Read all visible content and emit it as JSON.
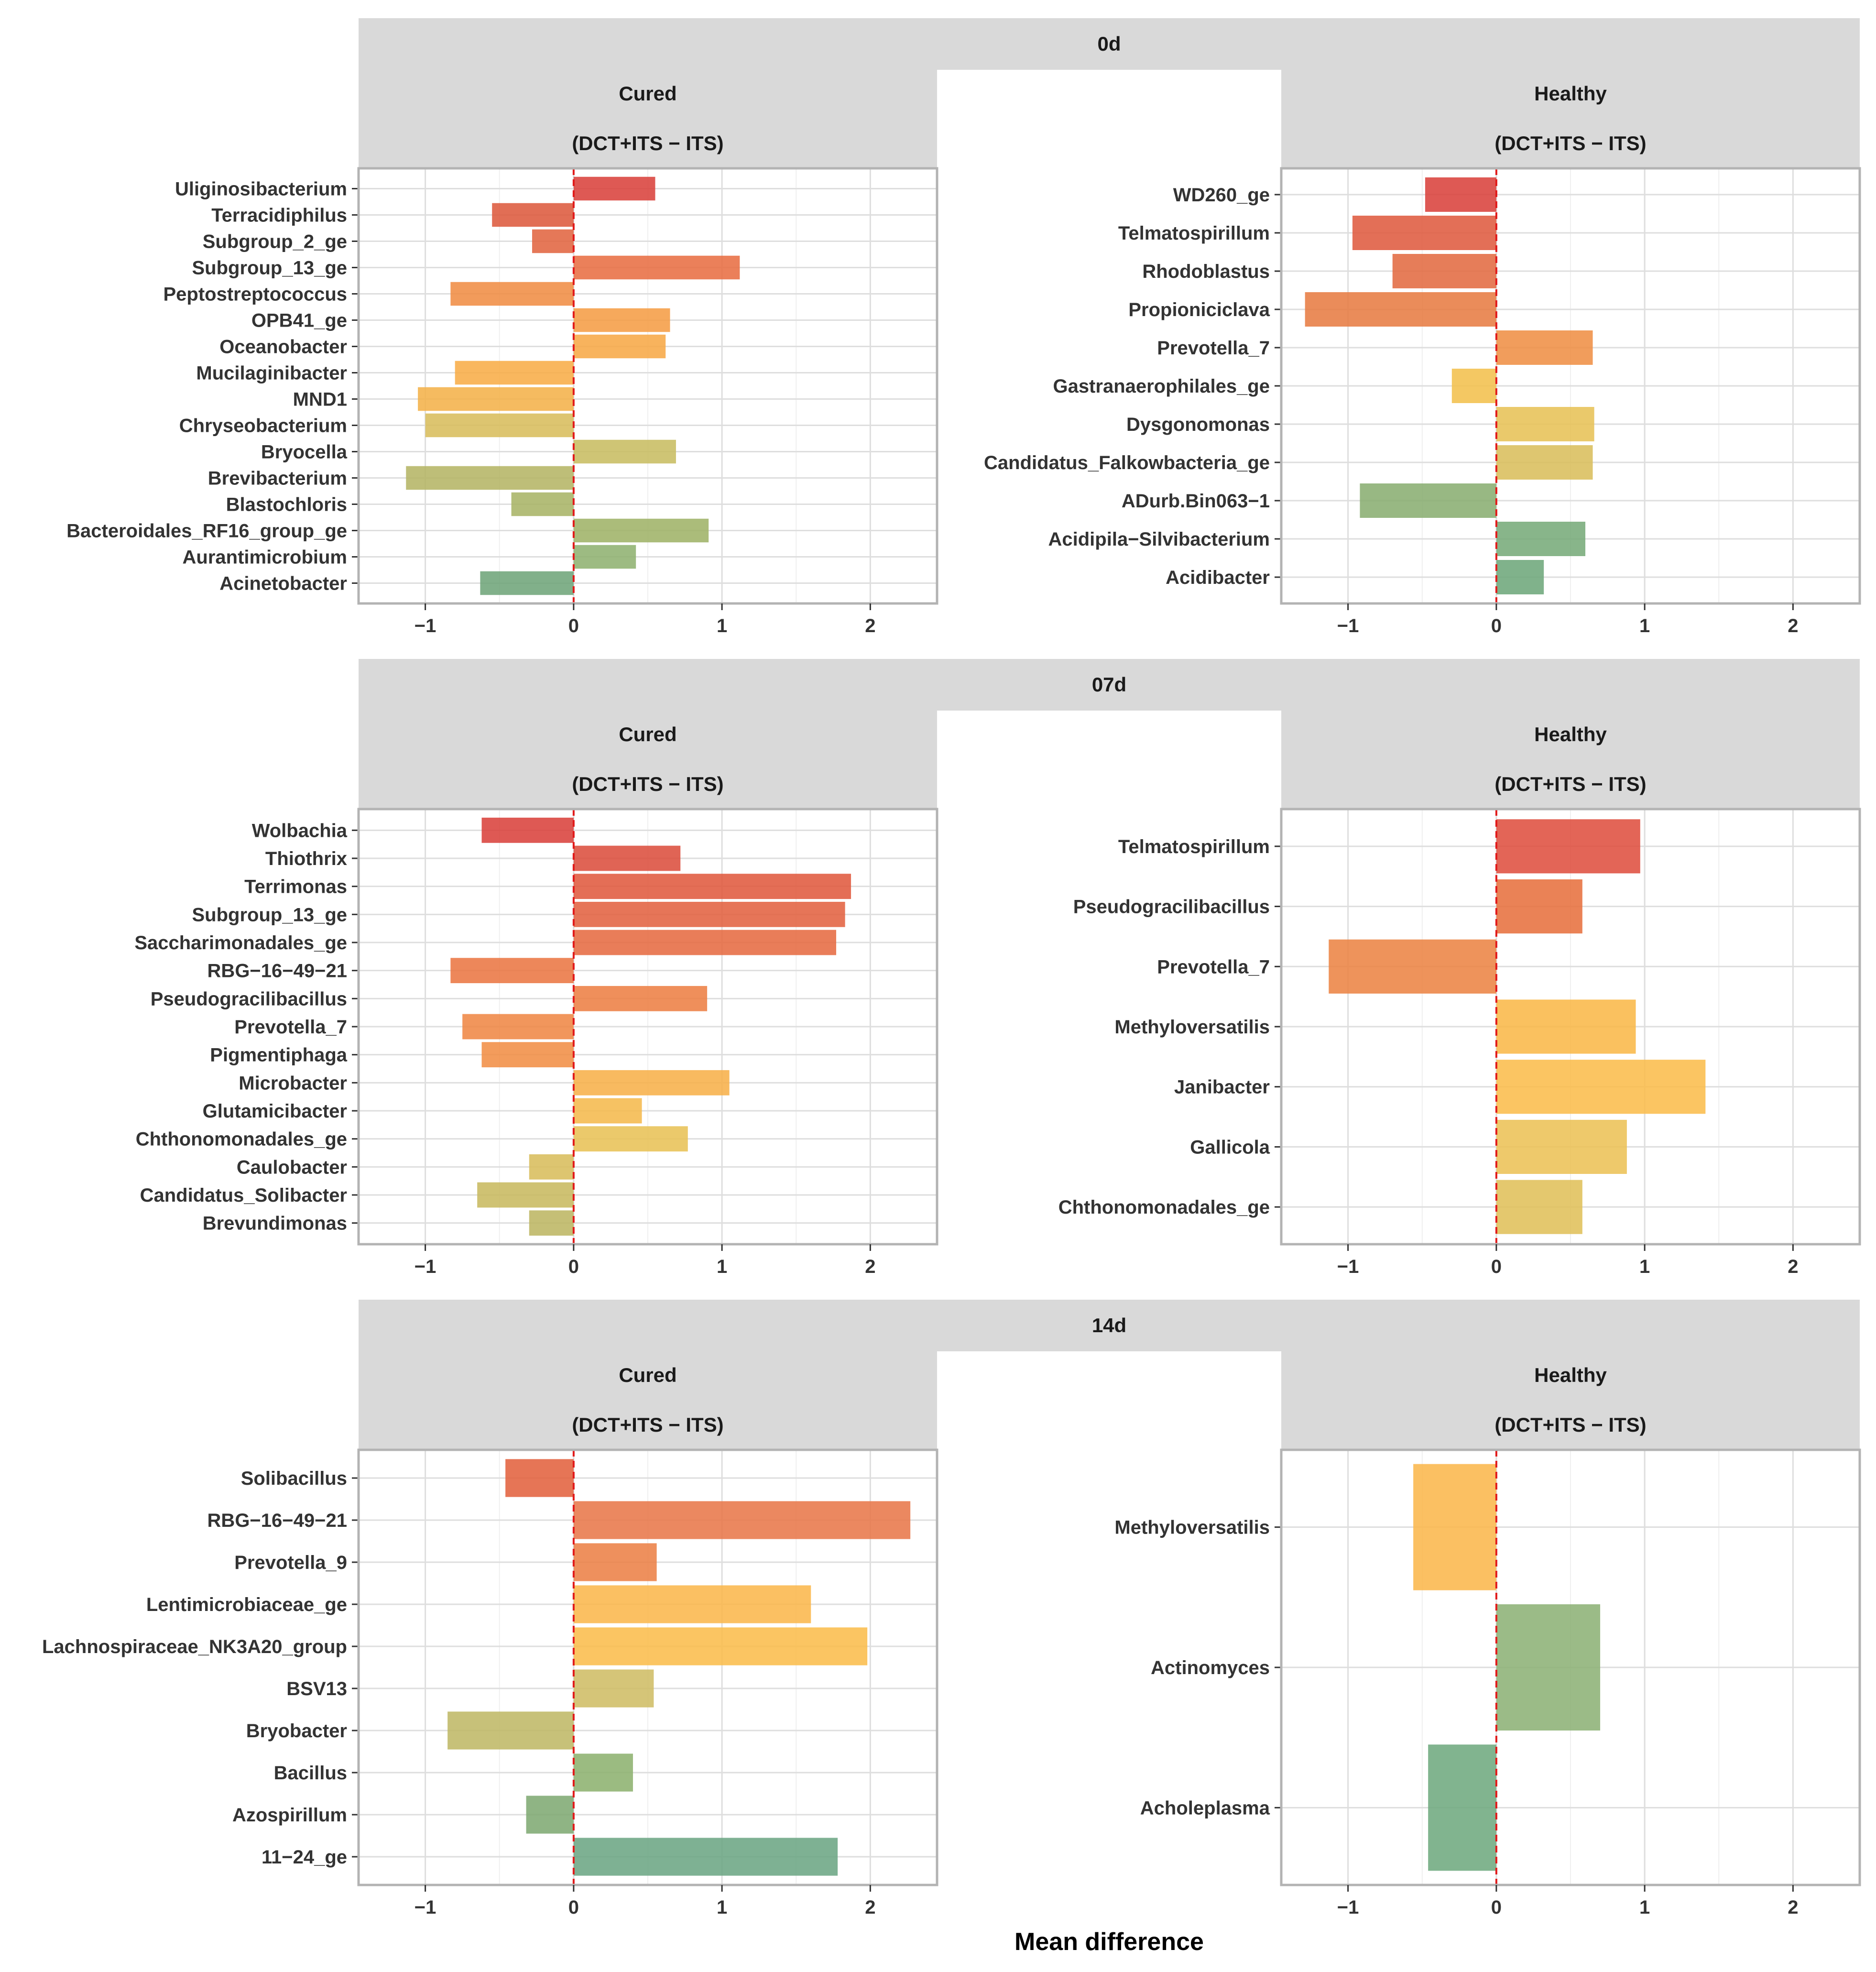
{
  "chart_data": {
    "type": "bar",
    "orientation": "horizontal",
    "xlabel": "Mean difference",
    "xlim": [
      -1.45,
      2.45
    ],
    "xticks": [
      -1,
      0,
      1,
      2
    ],
    "xtick_labels": [
      "−1",
      "0",
      "1",
      "2"
    ],
    "grid": true,
    "reference_line": {
      "x": 0,
      "style": "dashed",
      "color": "#e11a1a"
    },
    "comparison_label": "(DCT+ITS − ITS)",
    "rows": [
      {
        "time": "0d",
        "panels": [
          {
            "group": "Cured",
            "bars": [
              {
                "label": "Uliginosibacterium",
                "value": 0.55,
                "color": "#d9423c"
              },
              {
                "label": "Terracidiphilus",
                "value": -0.55,
                "color": "#dd5a3e"
              },
              {
                "label": "Subgroup_2_ge",
                "value": -0.28,
                "color": "#e16541"
              },
              {
                "label": "Subgroup_13_ge",
                "value": 1.12,
                "color": "#e86e43"
              },
              {
                "label": "Peptostreptococcus",
                "value": -0.83,
                "color": "#f08d44"
              },
              {
                "label": "OPB41_ge",
                "value": 0.65,
                "color": "#f59d45"
              },
              {
                "label": "Oceanobacter",
                "value": 0.62,
                "color": "#f7a847"
              },
              {
                "label": "Mucilaginibacter",
                "value": -0.8,
                "color": "#f8ad48"
              },
              {
                "label": "MND1",
                "value": -1.05,
                "color": "#f4b24a"
              },
              {
                "label": "Chryseobacterium",
                "value": -1.0,
                "color": "#d8bd5c"
              },
              {
                "label": "Bryocella",
                "value": 0.69,
                "color": "#c8bd62"
              },
              {
                "label": "Brevibacterium",
                "value": -1.13,
                "color": "#b5b565"
              },
              {
                "label": "Blastochloris",
                "value": -0.42,
                "color": "#a9b466"
              },
              {
                "label": "Bacteroidales_RF16_group_ge",
                "value": 0.91,
                "color": "#9fb368"
              },
              {
                "label": "Aurantimicrobium",
                "value": 0.42,
                "color": "#8fb271"
              },
              {
                "label": "Acinetobacter",
                "value": -0.63,
                "color": "#6fa57a"
              }
            ]
          },
          {
            "group": "Healthy",
            "bars": [
              {
                "label": "WD260_ge",
                "value": -0.48,
                "color": "#d9423c"
              },
              {
                "label": "Telmatospirillum",
                "value": -0.97,
                "color": "#df5b40"
              },
              {
                "label": "Rhodoblastus",
                "value": -0.7,
                "color": "#e36b42"
              },
              {
                "label": "Propioniciclava",
                "value": -1.29,
                "color": "#e77c43"
              },
              {
                "label": "Prevotella_7",
                "value": 0.65,
                "color": "#ef9045"
              },
              {
                "label": "Gastranaerophilales_ge",
                "value": -0.3,
                "color": "#f2c04d"
              },
              {
                "label": "Dysgonomonas",
                "value": 0.66,
                "color": "#e7c256"
              },
              {
                "label": "Candidatus_Falkowbacteria_ge",
                "value": 0.65,
                "color": "#d9be5c"
              },
              {
                "label": "ADurb.Bin063−1",
                "value": -0.92,
                "color": "#8aae72"
              },
              {
                "label": "Acidipila−Silvibacterium",
                "value": 0.6,
                "color": "#78ab7a"
              },
              {
                "label": "Acidibacter",
                "value": 0.32,
                "color": "#6ea77b"
              }
            ]
          }
        ]
      },
      {
        "time": "07d",
        "panels": [
          {
            "group": "Cured",
            "bars": [
              {
                "label": "Wolbachia",
                "value": -0.62,
                "color": "#d9423c"
              },
              {
                "label": "Thiothrix",
                "value": 0.72,
                "color": "#dc4f3e"
              },
              {
                "label": "Terrimonas",
                "value": 1.87,
                "color": "#e05a3f"
              },
              {
                "label": "Subgroup_13_ge",
                "value": 1.83,
                "color": "#e36241"
              },
              {
                "label": "Saccharimonadales_ge",
                "value": 1.77,
                "color": "#e66b42"
              },
              {
                "label": "RBG−16−49−21",
                "value": -0.83,
                "color": "#ea7643"
              },
              {
                "label": "Pseudogracilibacillus",
                "value": 0.9,
                "color": "#ed7f44"
              },
              {
                "label": "Prevotella_7",
                "value": -0.75,
                "color": "#ef8845"
              },
              {
                "label": "Pigmentiphaga",
                "value": -0.62,
                "color": "#f18e46"
              },
              {
                "label": "Microbacter",
                "value": 1.05,
                "color": "#f7b04a"
              },
              {
                "label": "Glutamicibacter",
                "value": 0.46,
                "color": "#f5b94d"
              },
              {
                "label": "Chthonomonadales_ge",
                "value": 0.77,
                "color": "#e8c256"
              },
              {
                "label": "Caulobacter",
                "value": -0.3,
                "color": "#d8bd5c"
              },
              {
                "label": "Candidatus_Solibacter",
                "value": -0.65,
                "color": "#c8ba60"
              },
              {
                "label": "Brevundimonas",
                "value": -0.3,
                "color": "#bdb663"
              }
            ]
          },
          {
            "group": "Healthy",
            "bars": [
              {
                "label": "Telmatospirillum",
                "value": 0.97,
                "color": "#df5040"
              },
              {
                "label": "Pseudogracilibacillus",
                "value": 0.58,
                "color": "#e7713f"
              },
              {
                "label": "Prevotella_7",
                "value": -1.13,
                "color": "#ec8444"
              },
              {
                "label": "Methyloversatilis",
                "value": 0.94,
                "color": "#f9b849"
              },
              {
                "label": "Janibacter",
                "value": 1.41,
                "color": "#fbbd4c"
              },
              {
                "label": "Gallicola",
                "value": 0.88,
                "color": "#ecc256"
              },
              {
                "label": "Chthonomonadales_ge",
                "value": 0.58,
                "color": "#e0c05a"
              }
            ]
          }
        ]
      },
      {
        "time": "14d",
        "panels": [
          {
            "group": "Cured",
            "bars": [
              {
                "label": "Solibacillus",
                "value": -0.46,
                "color": "#e3623f"
              },
              {
                "label": "RBG−16−49−21",
                "value": 2.27,
                "color": "#e8774a"
              },
              {
                "label": "Prevotella_9",
                "value": 0.56,
                "color": "#ec8147"
              },
              {
                "label": "Lentimicrobiaceae_ge",
                "value": 1.6,
                "color": "#fab74c"
              },
              {
                "label": "Lachnospiraceae_NK3A20_group",
                "value": 1.98,
                "color": "#fbbd4c"
              },
              {
                "label": "BSV13",
                "value": 0.54,
                "color": "#cfbd65"
              },
              {
                "label": "Bryobacter",
                "value": -0.85,
                "color": "#bfb866"
              },
              {
                "label": "Bacillus",
                "value": 0.4,
                "color": "#8db270"
              },
              {
                "label": "Azospirillum",
                "value": -0.32,
                "color": "#7faa73"
              },
              {
                "label": "11−24_ge",
                "value": 1.78,
                "color": "#6ca684"
              }
            ]
          },
          {
            "group": "Healthy",
            "bars": [
              {
                "label": "Methyloversatilis",
                "value": -0.56,
                "color": "#fab74c"
              },
              {
                "label": "Actinomyces",
                "value": 0.7,
                "color": "#8db276"
              },
              {
                "label": "Acholeplasma",
                "value": -0.46,
                "color": "#6faa7f"
              }
            ]
          }
        ]
      }
    ]
  }
}
